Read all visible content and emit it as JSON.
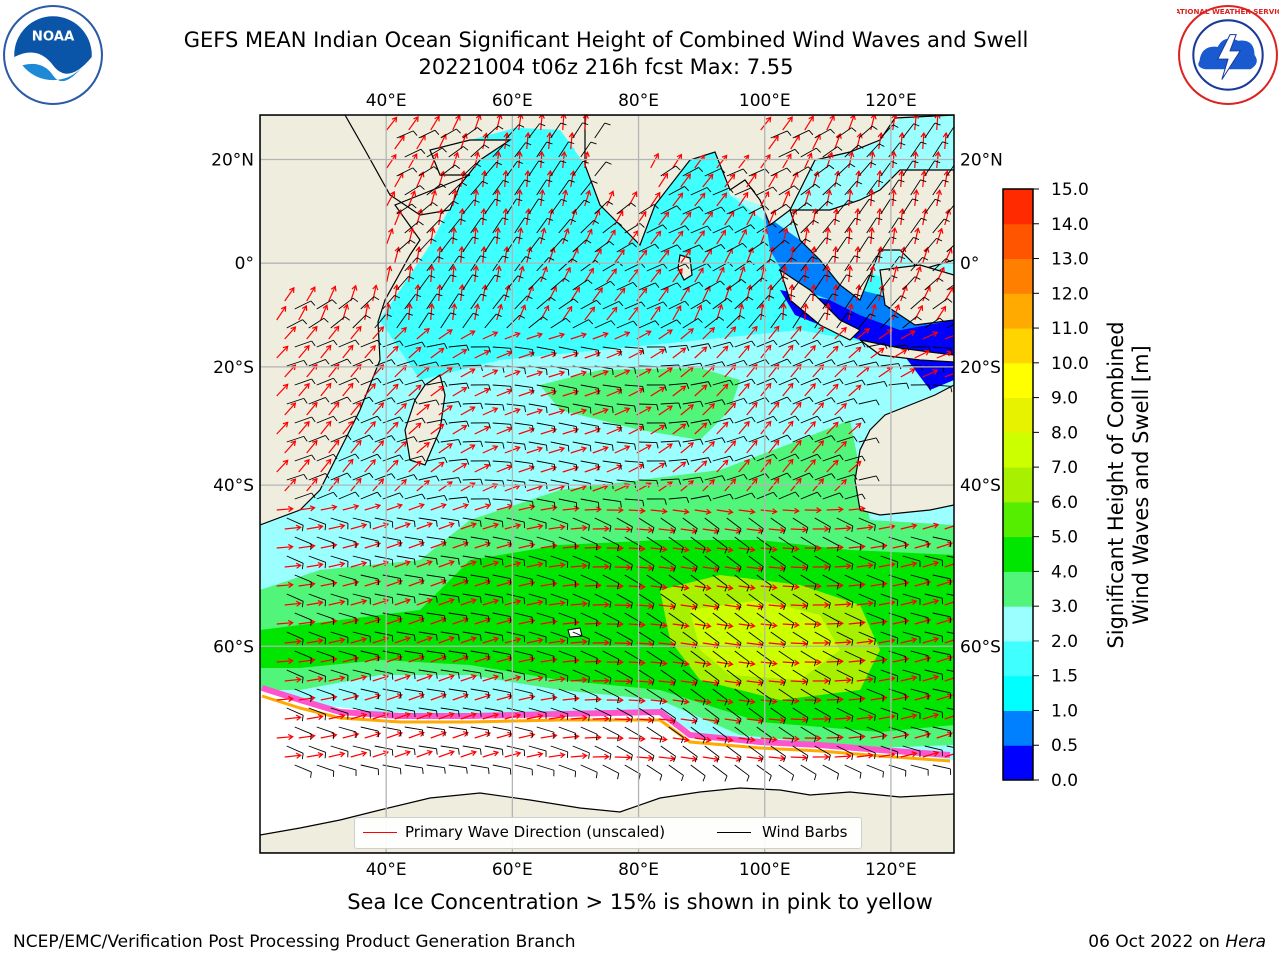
{
  "header": {
    "title_line1": "GEFS MEAN Indian Ocean Significant Height of Combined Wind Waves and Swell",
    "title_line2": "20221004 t06z 216h fcst   Max: 7.55"
  },
  "logos": {
    "left": "noaa-logo",
    "right": "national-weather-service-logo",
    "left_text": "NOAA",
    "right_text": "NATIONAL WEATHER SERVICE"
  },
  "map": {
    "lon_ticks_top": [
      "40°E",
      "60°E",
      "80°E",
      "100°E",
      "120°E"
    ],
    "lon_ticks_bottom": [
      "40°E",
      "60°E",
      "80°E",
      "100°E",
      "120°E"
    ],
    "lat_ticks_left": [
      "20°N",
      "0°",
      "20°S",
      "40°S",
      "60°S"
    ],
    "lat_ticks_right": [
      "20°N",
      "0°",
      "20°S",
      "40°S",
      "60°S"
    ],
    "lon_values": [
      40,
      60,
      80,
      100,
      120
    ],
    "lat_values": [
      20,
      0,
      -20,
      -40,
      -60
    ],
    "extent": {
      "lon_min": 20,
      "lon_max": 130,
      "lat_min": -75,
      "lat_max": 28
    },
    "colors": {
      "land": "#efedde",
      "arrow": "#ff0000",
      "barb": "#000000",
      "grid": "#b4b4b4"
    }
  },
  "legend": {
    "items": [
      {
        "label": "Primary Wave Direction (unscaled)",
        "color": "#ff0000"
      },
      {
        "label": "Wind Barbs",
        "color": "#000000"
      }
    ]
  },
  "colorbar": {
    "label_line1": "Significant Height of Combined",
    "label_line2": "Wind Waves and Swell [m]",
    "ticks": [
      "0.0",
      "0.5",
      "1.0",
      "1.5",
      "2.0",
      "3.0",
      "4.0",
      "5.0",
      "6.0",
      "7.0",
      "8.0",
      "9.0",
      "10.0",
      "11.0",
      "12.0",
      "13.0",
      "14.0",
      "15.0"
    ],
    "colors": [
      "#0000ff",
      "#0080ff",
      "#00ffff",
      "#40ffff",
      "#9bffff",
      "#50f57a",
      "#00e600",
      "#55ee00",
      "#a6f000",
      "#ccff00",
      "#e6f200",
      "#ffff00",
      "#ffd400",
      "#ffaa00",
      "#ff8000",
      "#ff5500",
      "#ff2a00"
    ]
  },
  "footer": {
    "caption": "Sea Ice Concentration > 15% is shown in pink to yellow",
    "credit": "NCEP/EMC/Verification Post Processing Product Generation Branch",
    "date_prefix": "06 Oct 2022 on",
    "date_host": "Hera"
  }
}
